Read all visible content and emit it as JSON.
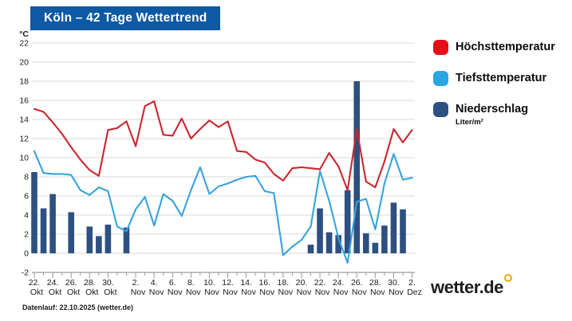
{
  "title": "Köln – 42 Tage Wettertrend",
  "legend": {
    "items": [
      {
        "label": "Höchsttemperatur",
        "color": "#e60c18"
      },
      {
        "label": "Tiefsttemperatur",
        "color": "#2ba6e3"
      },
      {
        "label": "Niederschlag",
        "sublabel": "Liter/m²",
        "color": "#2d5080"
      }
    ]
  },
  "footer_note": "Datenlauf: 22.10.2025 (wetter.de)",
  "logo": {
    "text": "wetter.de"
  },
  "chart_data": {
    "type": "line+bar",
    "title": "Köln – 42 Tage Wettertrend",
    "y_unit_label": "°C",
    "ylim": [
      -2,
      22
    ],
    "y_ticks": [
      22,
      20,
      18,
      16,
      14,
      12,
      10,
      8,
      6,
      4,
      2,
      0,
      -2
    ],
    "grid": true,
    "legend_position": "right",
    "x": [
      "22. Okt",
      "23. Okt",
      "24. Okt",
      "25. Okt",
      "26. Okt",
      "27. Okt",
      "28. Okt",
      "29. Okt",
      "30. Okt",
      "31. Okt",
      "1. Nov",
      "2. Nov",
      "3. Nov",
      "4. Nov",
      "5. Nov",
      "6. Nov",
      "7. Nov",
      "8. Nov",
      "9. Nov",
      "10. Nov",
      "11. Nov",
      "12. Nov",
      "13. Nov",
      "14. Nov",
      "15. Nov",
      "16. Nov",
      "17. Nov",
      "18. Nov",
      "19. Nov",
      "20. Nov",
      "21. Nov",
      "22. Nov",
      "23. Nov",
      "24. Nov",
      "25. Nov",
      "26. Nov",
      "27. Nov",
      "28. Nov",
      "29. Nov",
      "30. Nov",
      "1. Dez",
      "2. Dez"
    ],
    "x_major_ticks": [
      {
        "index": 0,
        "day": "22.",
        "month": "Okt"
      },
      {
        "index": 2,
        "day": "24.",
        "month": "Okt"
      },
      {
        "index": 4,
        "day": "26.",
        "month": "Okt"
      },
      {
        "index": 6,
        "day": "28.",
        "month": "Okt"
      },
      {
        "index": 8,
        "day": "30.",
        "month": "Okt"
      },
      {
        "index": 11,
        "day": "2.",
        "month": "Nov"
      },
      {
        "index": 13,
        "day": "4.",
        "month": "Nov"
      },
      {
        "index": 15,
        "day": "6.",
        "month": "Nov"
      },
      {
        "index": 17,
        "day": "8.",
        "month": "Nov"
      },
      {
        "index": 19,
        "day": "10.",
        "month": "Nov"
      },
      {
        "index": 21,
        "day": "12.",
        "month": "Nov"
      },
      {
        "index": 23,
        "day": "14.",
        "month": "Nov"
      },
      {
        "index": 25,
        "day": "16.",
        "month": "Nov"
      },
      {
        "index": 27,
        "day": "18.",
        "month": "Nov"
      },
      {
        "index": 29,
        "day": "20.",
        "month": "Nov"
      },
      {
        "index": 31,
        "day": "22.",
        "month": "Nov"
      },
      {
        "index": 33,
        "day": "24.",
        "month": "Nov"
      },
      {
        "index": 35,
        "day": "26.",
        "month": "Nov"
      },
      {
        "index": 37,
        "day": "28.",
        "month": "Nov"
      },
      {
        "index": 39,
        "day": "30.",
        "month": "Nov"
      },
      {
        "index": 41,
        "day": "2.",
        "month": "Dez"
      }
    ],
    "series": [
      {
        "name": "Höchsttemperatur",
        "type": "line",
        "color": "#c92730",
        "unit": "°C",
        "values": [
          15.1,
          14.8,
          13.7,
          12.5,
          11.1,
          9.8,
          8.7,
          8.1,
          12.9,
          13.1,
          13.8,
          11.2,
          15.4,
          15.9,
          12.4,
          12.3,
          14.1,
          12.0,
          13.0,
          13.9,
          13.2,
          13.8,
          10.7,
          10.6,
          9.8,
          9.5,
          8.3,
          7.6,
          8.9,
          9.0,
          8.9,
          8.8,
          10.5,
          9.1,
          6.6,
          13.0,
          7.5,
          6.9,
          9.6,
          13.0,
          11.6,
          12.9
        ]
      },
      {
        "name": "Tiefsttemperatur",
        "type": "line",
        "color": "#36a3dc",
        "unit": "°C",
        "values": [
          10.7,
          8.4,
          8.3,
          8.3,
          8.2,
          6.6,
          6.1,
          6.9,
          6.5,
          2.8,
          2.3,
          4.6,
          5.9,
          2.9,
          6.2,
          5.5,
          3.9,
          6.6,
          9.0,
          6.2,
          7.0,
          7.3,
          7.7,
          8.0,
          8.1,
          6.5,
          6.3,
          -0.2,
          0.7,
          1.4,
          2.8,
          8.6,
          5.5,
          1.6,
          -1.0,
          5.4,
          5.7,
          2.5,
          7.3,
          10.4,
          7.7,
          7.9
        ]
      },
      {
        "name": "Niederschlag",
        "type": "bar",
        "color": "#2d5080",
        "unit": "Liter/m²",
        "values": [
          8.5,
          4.7,
          6.2,
          0,
          4.3,
          0,
          2.8,
          1.8,
          3.0,
          0,
          2.7,
          0,
          0,
          0,
          0,
          0,
          0,
          0,
          0,
          0,
          0,
          0,
          0,
          0,
          0,
          0,
          0,
          0,
          0,
          0,
          0.9,
          4.7,
          2.2,
          1.9,
          6.6,
          18,
          2.1,
          1.1,
          2.9,
          5.3,
          4.6,
          0
        ]
      }
    ]
  }
}
